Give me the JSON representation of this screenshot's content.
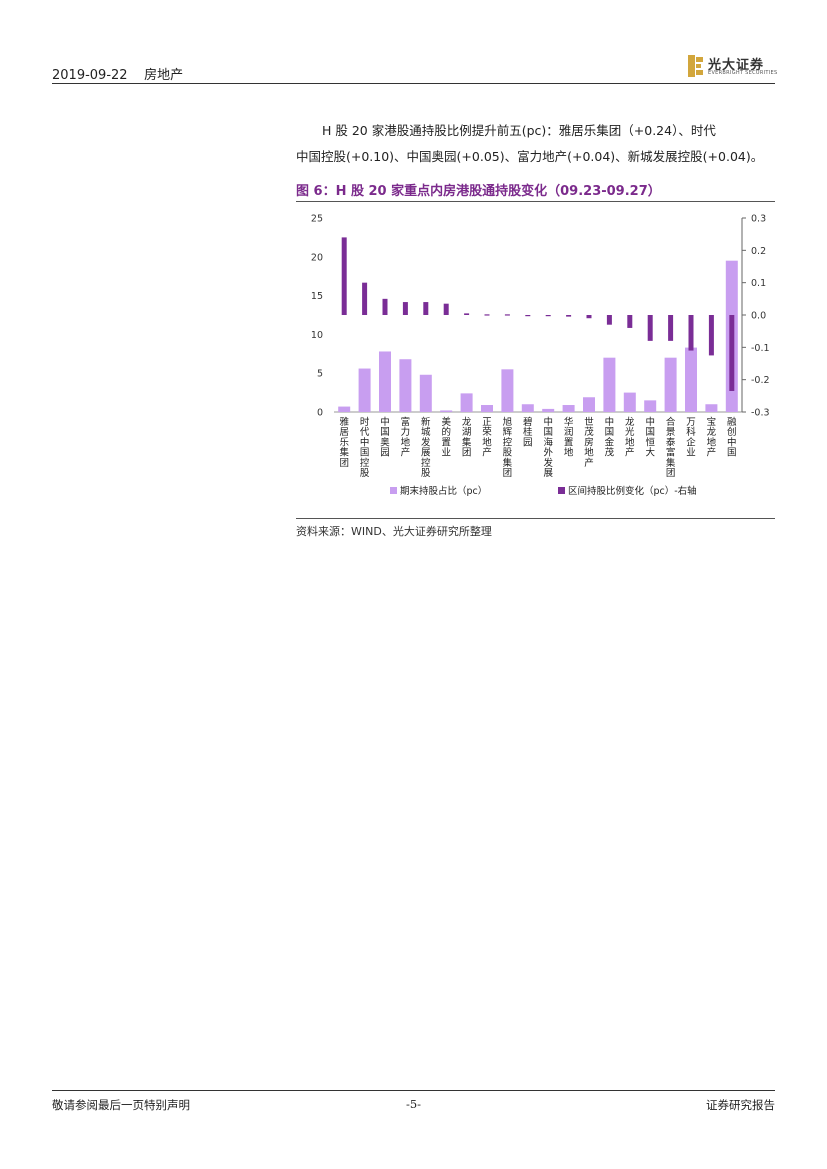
{
  "header": {
    "date": "2019-09-22",
    "sector": "房地产",
    "logo_text": "光大证券",
    "logo_en": "EVERBRIGHT SECURITIES"
  },
  "body": {
    "line1": "H 股 20 家港股通持股比例提升前五(pc)：雅居乐集团（+0.24）、时代",
    "line2": "中国控股(+0.10)、中国奥园(+0.05)、富力地产(+0.04)、新城发展控股(+0.04)。"
  },
  "figure": {
    "title": "图 6：H 股 20 家重点内房港股通持股变化（09.23-09.27）",
    "source": "资料来源：WIND、光大证券研究所整理"
  },
  "chart_data": {
    "type": "bar",
    "categories": [
      "雅居乐集团",
      "时代中国控股",
      "中国奥园",
      "富力地产",
      "新城发展控股",
      "美的置业",
      "龙湖集团",
      "正荣地产",
      "旭辉控股集团",
      "碧桂园",
      "中国海外发展",
      "华润置地",
      "世茂房地产",
      "中国金茂",
      "龙光地产",
      "中国恒大",
      "合景泰富集团",
      "万科企业",
      "宝龙地产",
      "融创中国"
    ],
    "series": [
      {
        "name": "期末持股占比（pc）",
        "axis": "left",
        "color": "#c89ef0",
        "values": [
          0.7,
          5.6,
          7.8,
          6.8,
          4.8,
          0.2,
          2.4,
          0.9,
          5.5,
          1.0,
          0.4,
          0.9,
          1.9,
          7.0,
          2.5,
          1.5,
          7.0,
          8.3,
          1.0,
          19.5
        ]
      },
      {
        "name": "区间持股比例变化（pc）-右轴",
        "axis": "right",
        "color": "#7a2d96",
        "values": [
          0.24,
          0.1,
          0.05,
          0.04,
          0.04,
          0.035,
          0.005,
          0.002,
          0.002,
          0.0,
          -0.002,
          -0.005,
          -0.01,
          -0.03,
          -0.04,
          -0.08,
          -0.08,
          -0.11,
          -0.125,
          -0.235
        ]
      }
    ],
    "left_axis": {
      "ylim": [
        0,
        25
      ],
      "ticks": [
        "0",
        "5",
        "10",
        "15",
        "20",
        "25"
      ]
    },
    "right_axis": {
      "ylim": [
        -0.3,
        0.3
      ],
      "ticks": [
        "-0.3",
        "-0.2",
        "-0.1",
        "0.0",
        "0.1",
        "0.2",
        "0.3"
      ]
    },
    "legend": "bottom"
  },
  "footer": {
    "left": "敬请参阅最后一页特别声明",
    "page": "-5-",
    "right": "证券研究报告"
  }
}
